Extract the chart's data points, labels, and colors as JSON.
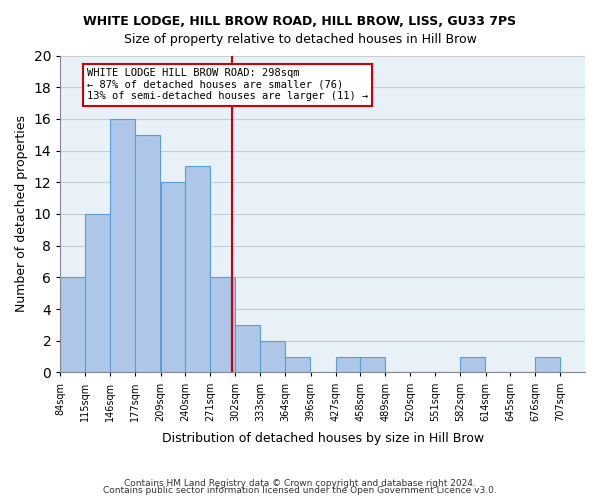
{
  "title": "WHITE LODGE, HILL BROW ROAD, HILL BROW, LISS, GU33 7PS",
  "subtitle": "Size of property relative to detached houses in Hill Brow",
  "xlabel": "Distribution of detached houses by size in Hill Brow",
  "ylabel": "Number of detached properties",
  "bin_labels": [
    "84sqm",
    "115sqm",
    "146sqm",
    "177sqm",
    "209sqm",
    "240sqm",
    "271sqm",
    "302sqm",
    "333sqm",
    "364sqm",
    "396sqm",
    "427sqm",
    "458sqm",
    "489sqm",
    "520sqm",
    "551sqm",
    "582sqm",
    "614sqm",
    "645sqm",
    "676sqm",
    "707sqm"
  ],
  "bin_edges": [
    84,
    115,
    146,
    177,
    209,
    240,
    271,
    302,
    333,
    364,
    396,
    427,
    458,
    489,
    520,
    551,
    582,
    614,
    645,
    676,
    707
  ],
  "bar_heights": [
    6,
    10,
    16,
    15,
    12,
    13,
    6,
    3,
    2,
    1,
    0,
    1,
    1,
    0,
    0,
    0,
    1,
    0,
    0,
    1
  ],
  "bar_color": "#aec6e8",
  "bar_edge_color": "#5a9fd4",
  "vline_x": 298,
  "vline_color": "#cc0000",
  "annotation_text": "WHITE LODGE HILL BROW ROAD: 298sqm\n← 87% of detached houses are smaller (76)\n13% of semi-detached houses are larger (11) →",
  "annotation_box_color": "#cc0000",
  "ylim": [
    0,
    20
  ],
  "yticks": [
    0,
    2,
    4,
    6,
    8,
    10,
    12,
    14,
    16,
    18,
    20
  ],
  "grid_color": "#cccccc",
  "background_color": "#e8f0f8",
  "footer_line1": "Contains HM Land Registry data © Crown copyright and database right 2024.",
  "footer_line2": "Contains public sector information licensed under the Open Government Licence v3.0."
}
